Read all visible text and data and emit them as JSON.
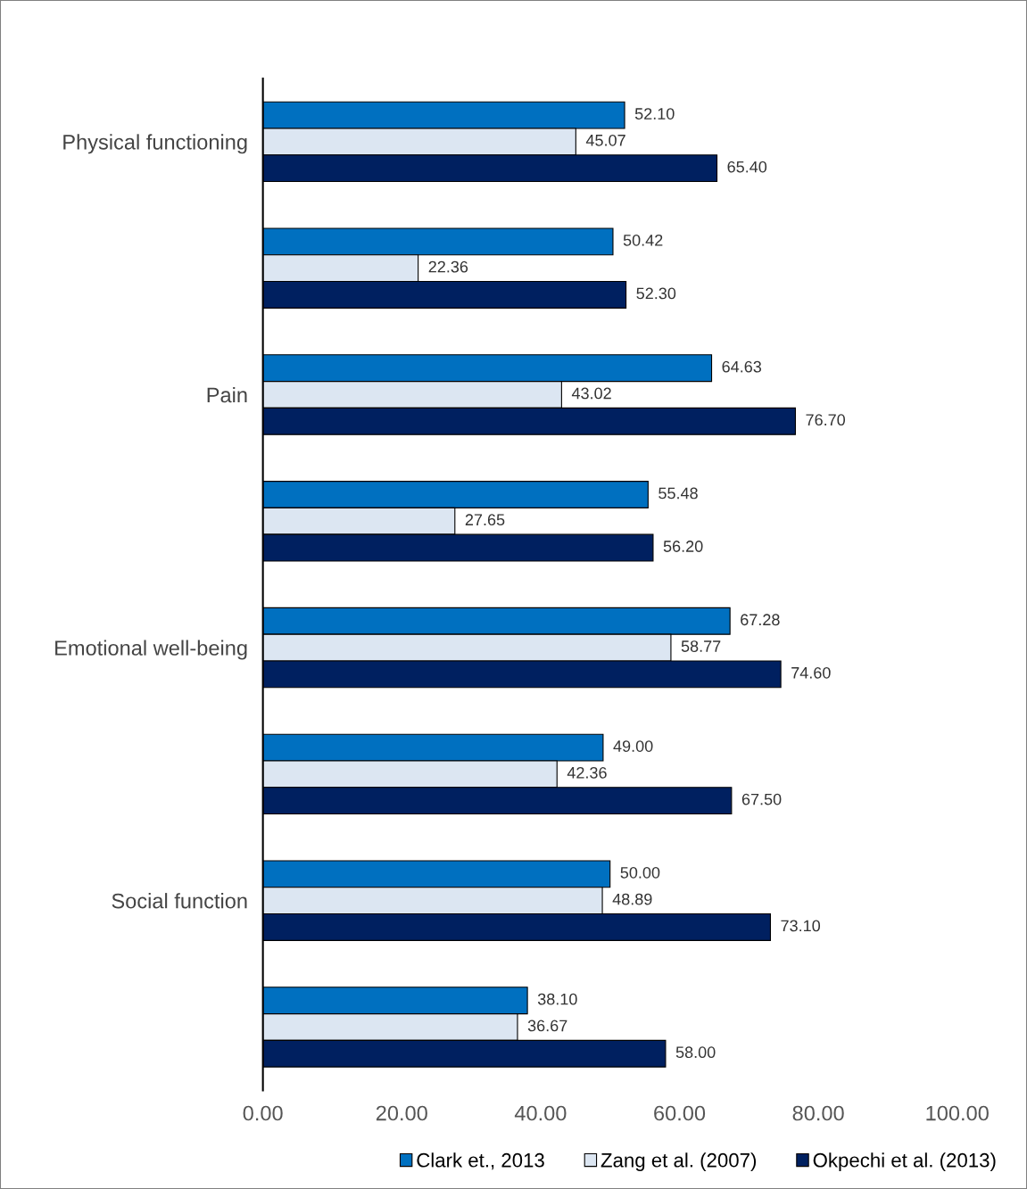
{
  "chart_data": {
    "type": "bar",
    "orientation": "horizontal",
    "categories": [
      "Physical functioning",
      null,
      "Pain",
      null,
      "Emotional well-being",
      null,
      "Social function",
      null
    ],
    "series": [
      {
        "name": "Clark et., 2013",
        "color": "#0070c0",
        "values": [
          52.1,
          50.42,
          64.63,
          55.48,
          67.28,
          49.0,
          50.0,
          38.1
        ],
        "value_labels": [
          "52.10",
          "50.42",
          "64.63",
          "55.48",
          "67.28",
          "49.00",
          "50.00",
          "38.10"
        ]
      },
      {
        "name": "Zang et al. (2007)",
        "color": "#dce6f2",
        "values": [
          45.07,
          22.36,
          43.02,
          27.65,
          58.77,
          42.36,
          48.89,
          36.67
        ],
        "value_labels": [
          "45.07",
          "22.36",
          "43.02",
          "27.65",
          "58.77",
          "42.36",
          "48.89",
          "36.67"
        ]
      },
      {
        "name": "Okpechi et al. (2013)",
        "color": "#002060",
        "values": [
          65.4,
          52.3,
          76.7,
          56.2,
          74.6,
          67.5,
          73.1,
          58.0
        ],
        "value_labels": [
          "65.40",
          "52.30",
          "76.70",
          "56.20",
          "74.60",
          "67.50",
          "73.10",
          "58.00"
        ]
      }
    ],
    "xlim": [
      0,
      100
    ],
    "xticks": [
      {
        "value": 0,
        "label": "0.00"
      },
      {
        "value": 20,
        "label": "20.00"
      },
      {
        "value": 40,
        "label": "40.00"
      },
      {
        "value": 60,
        "label": "60.00"
      },
      {
        "value": 80,
        "label": "80.00"
      },
      {
        "value": 100,
        "label": "100.00"
      }
    ],
    "grid": false,
    "legend": "bottom"
  }
}
